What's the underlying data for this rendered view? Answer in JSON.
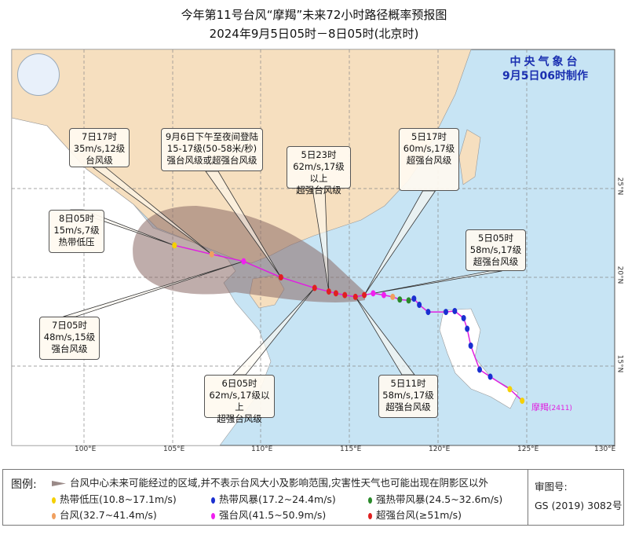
{
  "header": {
    "title": "今年第11号台风“摩羯”未来72小时路径概率预报图",
    "subtitle": "2024年9月5日05时－8日05时(北京时)"
  },
  "issuer": {
    "name": "中央气象台",
    "issued": "9月5日06时制作"
  },
  "map": {
    "lon_labels": [
      "100°E",
      "105°E",
      "110°E",
      "115°E",
      "120°E",
      "125°E",
      "130°E"
    ],
    "lat_labels": [
      "25°N",
      "20°N",
      "15°N"
    ],
    "colors": {
      "china_land": "#f6dfbf",
      "other_land": "#ffffff",
      "sea": "#c7e4f4",
      "cone": "#8a6a66",
      "track": "#e020e0"
    },
    "typhoon_label": "摩羯",
    "typhoon_id": "(2411)",
    "track": [
      {
        "lon": 124.7,
        "lat": 13.05,
        "cat": "td"
      },
      {
        "lon": 124.0,
        "lat": 13.7,
        "cat": "td"
      },
      {
        "lon": 122.9,
        "lat": 14.4,
        "cat": "ts"
      },
      {
        "lon": 122.3,
        "lat": 14.8,
        "cat": "ts"
      },
      {
        "lon": 121.8,
        "lat": 16.15,
        "cat": "ts"
      },
      {
        "lon": 121.6,
        "lat": 17.1,
        "cat": "ts"
      },
      {
        "lon": 121.4,
        "lat": 17.7,
        "cat": "ts"
      },
      {
        "lon": 120.9,
        "lat": 18.1,
        "cat": "ts"
      },
      {
        "lon": 120.4,
        "lat": 18.05,
        "cat": "ts"
      },
      {
        "lon": 119.4,
        "lat": 18.05,
        "cat": "ts"
      },
      {
        "lon": 118.9,
        "lat": 18.45,
        "cat": "ts"
      },
      {
        "lon": 118.6,
        "lat": 18.8,
        "cat": "ts"
      },
      {
        "lon": 118.3,
        "lat": 18.7,
        "cat": "sts"
      },
      {
        "lon": 117.8,
        "lat": 18.75,
        "cat": "sts"
      },
      {
        "lon": 117.4,
        "lat": 18.9,
        "cat": "ty"
      },
      {
        "lon": 116.9,
        "lat": 19.0,
        "cat": "sty"
      },
      {
        "lon": 116.3,
        "lat": 19.1,
        "cat": "sty"
      },
      {
        "lon": 115.8,
        "lat": 19.0,
        "cat": "super"
      },
      {
        "lon": 115.3,
        "lat": 18.9,
        "cat": "super"
      },
      {
        "lon": 114.7,
        "lat": 19.0,
        "cat": "super"
      },
      {
        "lon": 114.2,
        "lat": 19.1,
        "cat": "super"
      },
      {
        "lon": 113.8,
        "lat": 19.2,
        "cat": "super"
      },
      {
        "lon": 113.0,
        "lat": 19.4,
        "cat": "super"
      },
      {
        "lon": 111.1,
        "lat": 20.0,
        "cat": "super"
      },
      {
        "lon": 109.0,
        "lat": 20.9,
        "cat": "sty"
      },
      {
        "lon": 107.2,
        "lat": 21.3,
        "cat": "ty"
      },
      {
        "lon": 105.1,
        "lat": 21.8,
        "cat": "td"
      }
    ],
    "callouts": [
      {
        "lines": [
          "7日17时",
          "35m/s,12级",
          "台风级"
        ]
      },
      {
        "lines": [
          "9月6日下午至夜间登陆",
          "15-17级(50-58米/秒)",
          "强台风级或超强台风级"
        ]
      },
      {
        "lines": [
          "5日23时",
          "62m/s,17级以上",
          "超强台风级"
        ]
      },
      {
        "lines": [
          "5日17时",
          "60m/s,17级",
          "超强台风级"
        ]
      },
      {
        "lines": [
          "8日05时",
          "15m/s,7级",
          "热带低压"
        ]
      },
      {
        "lines": [
          "5日05时",
          "58m/s,17级",
          "超强台风级"
        ]
      },
      {
        "lines": [
          "7日05时",
          "48m/s,15级",
          "强台风级"
        ]
      },
      {
        "lines": [
          "6日05时",
          "62m/s,17级以上",
          "超强台风级"
        ]
      },
      {
        "lines": [
          "5日11时",
          "58m/s,17级",
          "超强台风级"
        ]
      }
    ]
  },
  "legend": {
    "title": "图例:",
    "cone_text": "台风中心未来可能经过的区域,并不表示台风大小及影响范围,灾害性天气也可能出现在阴影区以外",
    "items": [
      {
        "key": "td",
        "label": "热带低压(10.8~17.1m/s)",
        "color": "#f5d000"
      },
      {
        "key": "ts",
        "label": "热带风暴(17.2~24.4m/s)",
        "color": "#1a2fd0"
      },
      {
        "key": "sts",
        "label": "强热带风暴(24.5~32.6m/s)",
        "color": "#2a8a2a"
      },
      {
        "key": "ty",
        "label": "台风(32.7~41.4m/s)",
        "color": "#f0a060"
      },
      {
        "key": "sty",
        "label": "强台风(41.5~50.9m/s)",
        "color": "#f020f0"
      },
      {
        "key": "super",
        "label": "超强台风(≥51m/s)",
        "color": "#e02020"
      }
    ],
    "review_label": "审图号:",
    "review_no": "GS (2019) 3082号"
  }
}
